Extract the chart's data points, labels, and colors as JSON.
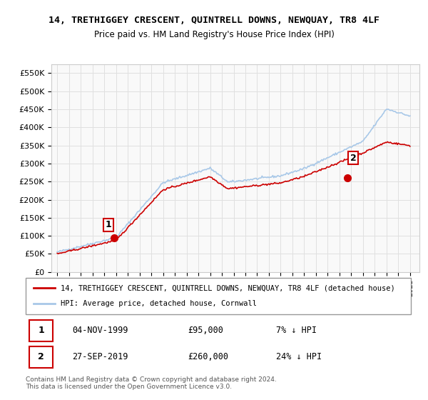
{
  "title": "14, TRETHIGGEY CRESCENT, QUINTRELL DOWNS, NEWQUAY, TR8 4LF",
  "subtitle": "Price paid vs. HM Land Registry's House Price Index (HPI)",
  "legend_line1": "14, TRETHIGGEY CRESCENT, QUINTRELL DOWNS, NEWQUAY, TR8 4LF (detached house)",
  "legend_line2": "HPI: Average price, detached house, Cornwall",
  "transaction1_date": "04-NOV-1999",
  "transaction1_price": "£95,000",
  "transaction1_hpi": "7% ↓ HPI",
  "transaction2_date": "27-SEP-2019",
  "transaction2_price": "£260,000",
  "transaction2_hpi": "24% ↓ HPI",
  "footnote": "Contains HM Land Registry data © Crown copyright and database right 2024.\nThis data is licensed under the Open Government Licence v3.0.",
  "hpi_color": "#a8c8e8",
  "price_color": "#cc0000",
  "ylim": [
    0,
    575000
  ],
  "yticks": [
    0,
    50000,
    100000,
    150000,
    200000,
    250000,
    300000,
    350000,
    400000,
    450000,
    500000,
    550000
  ],
  "grid_color": "#e0e0e0"
}
